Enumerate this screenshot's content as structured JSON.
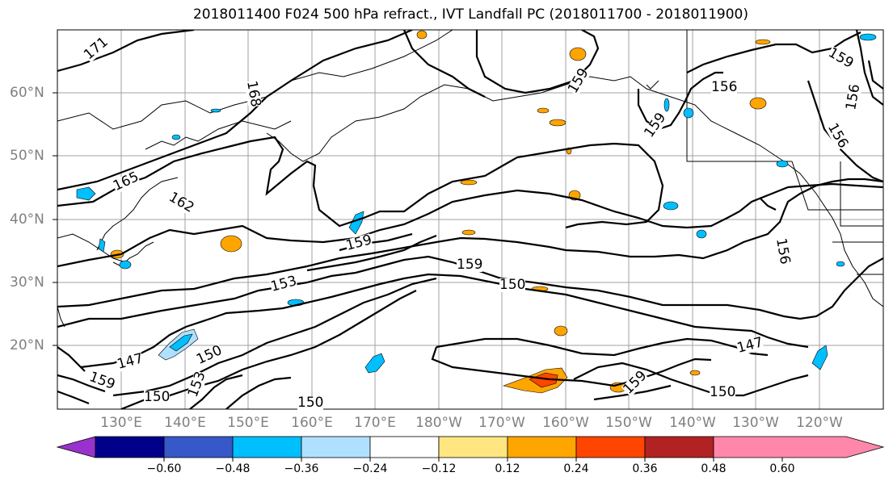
{
  "title": "2018011400 F024 500 hPa refract., IVT Landfall PC (2018011700 - 2018011900)",
  "lat_labels": [
    "60°N",
    "50°N",
    "40°N",
    "30°N",
    "20°N"
  ],
  "lon_labels": [
    "130°E",
    "140°E",
    "150°E",
    "160°E",
    "170°E",
    "180°W",
    "170°W",
    "160°W",
    "150°W",
    "140°W",
    "130°W",
    "120°W"
  ],
  "contour_labels": [
    "171",
    "168",
    "165",
    "162",
    "159",
    "159",
    "156",
    "156",
    "156",
    "159",
    "159",
    "153",
    "150",
    "150",
    "147",
    "159",
    "153",
    "159",
    "150",
    "147",
    "150",
    "150",
    "156",
    "159"
  ],
  "colorbar": {
    "ticks": [
      "−0.60",
      "−0.48",
      "−0.36",
      "−0.24",
      "−0.12",
      "0.12",
      "0.24",
      "0.36",
      "0.48",
      "0.60"
    ],
    "colors": [
      "#9932cc",
      "#00008b",
      "#3658c8",
      "#00bfff",
      "#b0e0ff",
      "#ffffff",
      "#ffe680",
      "#ffa500",
      "#ff4500",
      "#b22222",
      "#ff88aa"
    ]
  }
}
